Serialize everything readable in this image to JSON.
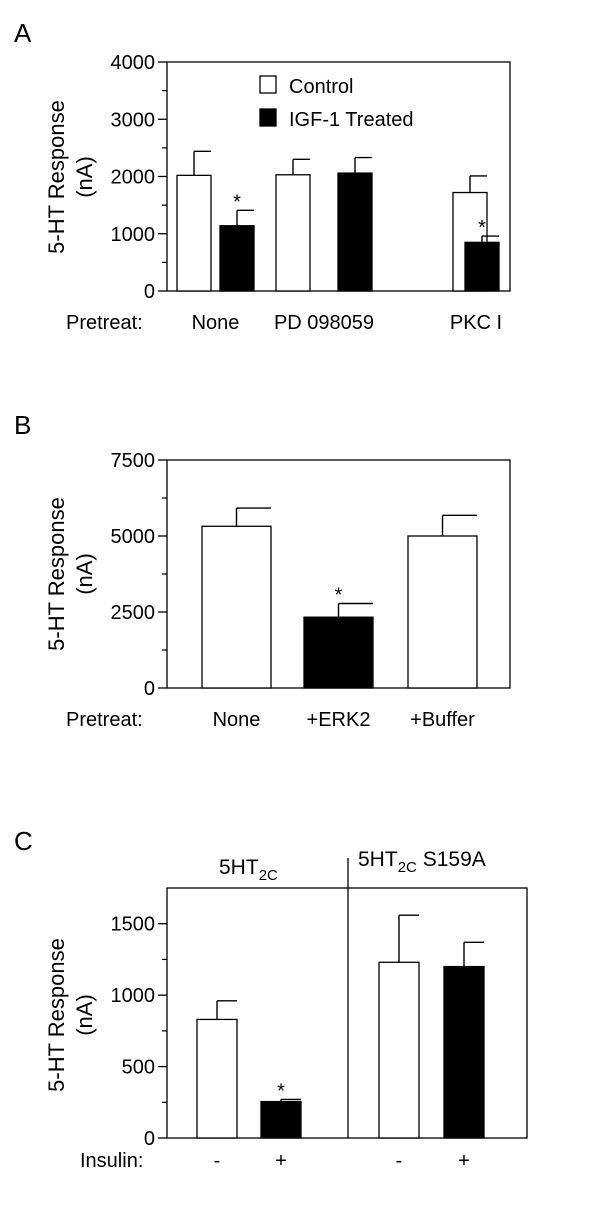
{
  "colors": {
    "open": "#ffffff",
    "filled": "#000000",
    "stroke": "#000000"
  },
  "chart_data": [
    {
      "panel": "A",
      "type": "bar",
      "ylabel_line1": "5-HT Response",
      "ylabel_line2": "(nA)",
      "row_label": "Pretreat:",
      "ylim": [
        0,
        4000
      ],
      "yticks": [
        0,
        1000,
        2000,
        3000,
        4000
      ],
      "yminor": [
        500,
        1500,
        2500,
        3500
      ],
      "categories": [
        "None",
        "PD 098059",
        "PKC I"
      ],
      "legend": {
        "position": "top-center",
        "entries": [
          "Control",
          "IGF-1 Treated"
        ]
      },
      "series": [
        {
          "name": "Control",
          "style": "open",
          "values": [
            2020,
            2030,
            1720
          ],
          "errors": [
            420,
            270,
            290
          ]
        },
        {
          "name": "IGF-1 Treated",
          "style": "filled",
          "values": [
            1140,
            2060,
            850
          ],
          "errors": [
            270,
            270,
            110
          ]
        }
      ],
      "annotations": [
        {
          "category": 0,
          "series": 1,
          "text": "*"
        },
        {
          "category": 2,
          "series": 1,
          "text": "*"
        }
      ]
    },
    {
      "panel": "B",
      "type": "bar",
      "ylabel_line1": "5-HT Response",
      "ylabel_line2": "(nA)",
      "row_label": "Pretreat:",
      "ylim": [
        0,
        7500
      ],
      "yticks": [
        0,
        2500,
        5000,
        7500
      ],
      "yminor": [
        1250,
        3750,
        6250
      ],
      "categories": [
        "None",
        "+ERK2",
        "+Buffer"
      ],
      "series": [
        {
          "styles": [
            "open",
            "filled",
            "open"
          ],
          "values": [
            5320,
            2330,
            5000
          ],
          "errors": [
            600,
            450,
            680
          ]
        }
      ],
      "annotations": [
        {
          "category": 1,
          "series": 0,
          "text": "*"
        }
      ]
    },
    {
      "panel": "C",
      "type": "bar",
      "ylabel_line1": "5-HT Response",
      "ylabel_line2": "(nA)",
      "row_label": "Insulin:",
      "ylim": [
        0,
        1750
      ],
      "yticks": [
        0,
        500,
        1000,
        1500
      ],
      "yminor": [
        250,
        750,
        1250
      ],
      "groups": [
        {
          "title_main": "5HT",
          "title_sub": "2C",
          "title_suffix": ""
        },
        {
          "title_main": "5HT",
          "title_sub": "2C",
          "title_suffix": " S159A"
        }
      ],
      "categories": [
        "-",
        "+",
        "-",
        "+"
      ],
      "series": [
        {
          "styles": [
            "open",
            "filled",
            "open",
            "filled"
          ],
          "values": [
            830,
            255,
            1230,
            1200
          ],
          "errors": [
            130,
            15,
            330,
            170
          ]
        }
      ],
      "annotations": [
        {
          "category": 1,
          "series": 0,
          "text": "*"
        }
      ]
    }
  ]
}
